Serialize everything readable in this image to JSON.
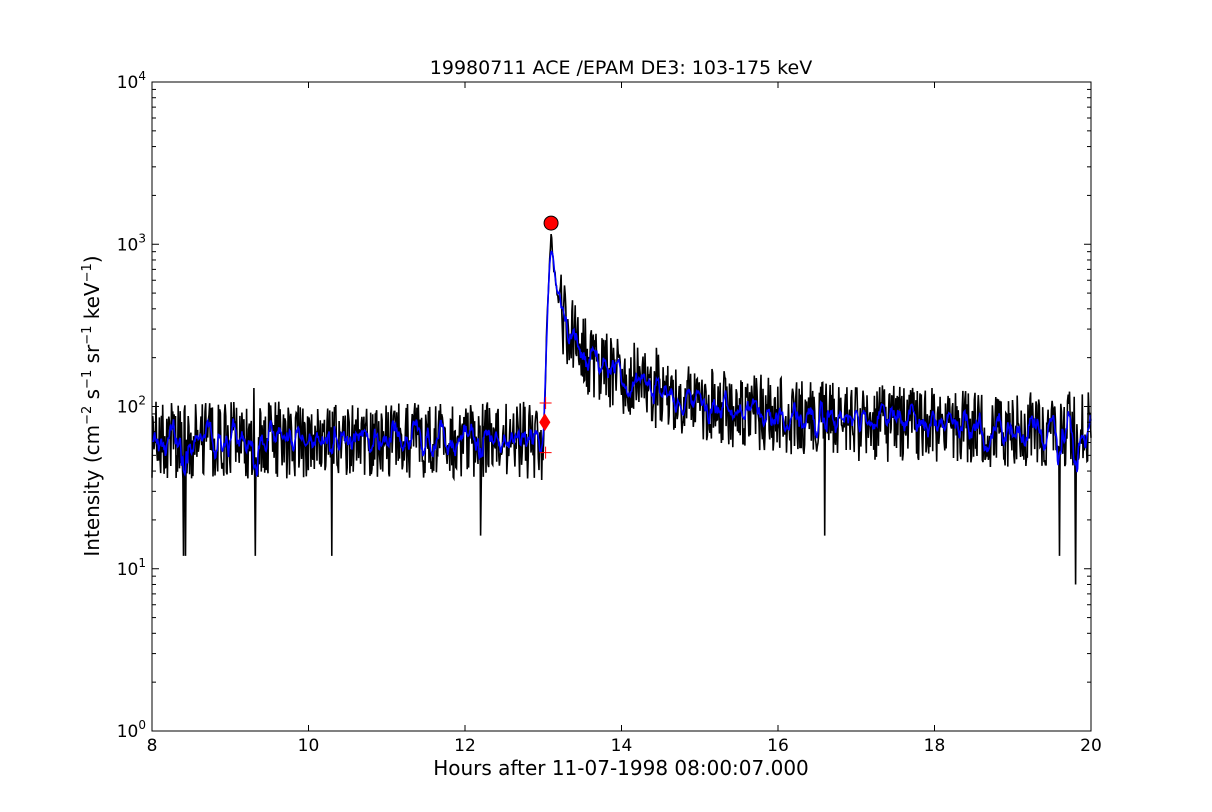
{
  "chart_data": {
    "type": "line",
    "title": "19980711 ACE /EPAM DE3: 103-175 keV",
    "xlabel": "Hours after 11-07-1998 08:00:07.000",
    "ylabel_main": "Intensity (cm",
    "ylabel_parts": [
      "Intensity (cm",
      "−2",
      " s",
      "−1",
      " sr",
      "−1",
      " keV",
      "−1",
      ")"
    ],
    "xlim": [
      8,
      20
    ],
    "ylim": [
      1,
      10000
    ],
    "yscale": "log",
    "grid": false,
    "xticks": [
      8,
      10,
      12,
      14,
      16,
      18,
      20
    ],
    "xtick_labels": [
      "8",
      "10",
      "12",
      "14",
      "16",
      "18",
      "20"
    ],
    "yticks": [
      1,
      10,
      100,
      1000,
      10000
    ],
    "ytick_base": "10",
    "ytick_exponents": [
      "0",
      "1",
      "2",
      "3",
      "4"
    ],
    "colors": {
      "raw": "#000000",
      "smoothed": "#0000ff",
      "marker": "#ff0000"
    },
    "series": [
      {
        "role": "raw",
        "color": "#000000",
        "segments": [
          {
            "x": [
              8.0,
              8.5,
              9.0,
              9.5,
              10.0,
              10.5,
              11.0,
              11.5,
              12.0,
              12.5,
              12.95
            ],
            "base": 62,
            "noise": 0.55
          },
          {
            "x": [
              12.95,
              13.0,
              13.02,
              13.05,
              13.08,
              13.1,
              13.13,
              13.2,
              13.3,
              13.5,
              13.8,
              14.2,
              14.6,
              15.0,
              15.5,
              16.0,
              17.0,
              18.0,
              19.0,
              20.0
            ],
            "y": [
              55,
              60,
              110,
              350,
              800,
              1300,
              750,
              420,
              300,
              210,
              170,
              140,
              120,
              105,
              95,
              88,
              80,
              75,
              70,
              72
            ]
          }
        ],
        "spikes": [
          {
            "x": 8.4,
            "y": 12
          },
          {
            "x": 8.43,
            "y": 12
          },
          {
            "x": 9.32,
            "y": 12
          },
          {
            "x": 9.3,
            "y": 130
          },
          {
            "x": 10.3,
            "y": 12
          },
          {
            "x": 12.2,
            "y": 16
          },
          {
            "x": 16.6,
            "y": 16
          },
          {
            "x": 19.6,
            "y": 12
          },
          {
            "x": 19.8,
            "y": 8
          },
          {
            "x": 13.9,
            "y": 230
          },
          {
            "x": 14.45,
            "y": 230
          }
        ]
      },
      {
        "role": "smoothed",
        "color": "#0000ff",
        "base": 62,
        "noise": 0.25
      }
    ],
    "markers": [
      {
        "shape": "circle",
        "x": 13.1,
        "y": 1350,
        "color": "#ff0000"
      },
      {
        "shape": "diamond",
        "x": 13.02,
        "y": 80,
        "color": "#ff0000"
      },
      {
        "shape": "plus",
        "x": 13.03,
        "y": 105,
        "color": "#ff0000"
      },
      {
        "shape": "plus",
        "x": 13.03,
        "y": 52,
        "color": "#ff0000"
      }
    ]
  }
}
